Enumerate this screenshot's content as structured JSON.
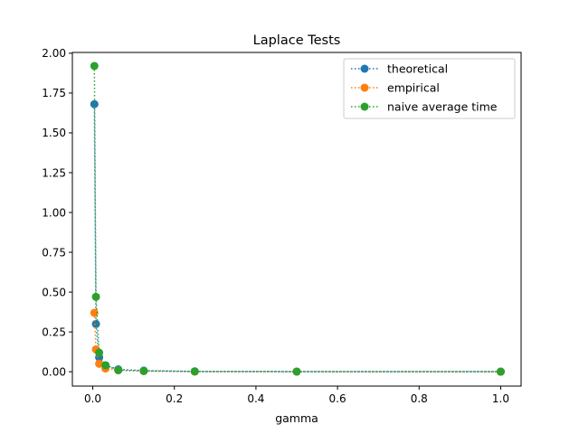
{
  "chart_data": {
    "type": "line",
    "title": "Laplace Tests",
    "xlabel": "gamma",
    "ylabel": "",
    "xlim": [
      -0.05,
      1.05
    ],
    "ylim": [
      -0.09,
      2.005
    ],
    "xticks": [
      "0.0",
      "0.2",
      "0.4",
      "0.6",
      "0.8",
      "1.0"
    ],
    "yticks": [
      "0.00",
      "0.25",
      "0.50",
      "0.75",
      "1.00",
      "1.25",
      "1.50",
      "1.75",
      "2.00"
    ],
    "grid": false,
    "legend_position": "top-right",
    "line_style": "dotted",
    "marker": "circle",
    "x": [
      0.00390625,
      0.0078125,
      0.015625,
      0.03125,
      0.0625,
      0.125,
      0.25,
      0.5,
      1.0
    ],
    "series": [
      {
        "name": "theoretical",
        "color": "#1f77b4",
        "values": [
          1.68,
          0.3,
          0.09,
          0.04,
          0.015,
          0.007,
          0.002,
          0.001,
          0.0005
        ]
      },
      {
        "name": "empirical",
        "color": "#ff7f0e",
        "values": [
          0.37,
          0.14,
          0.05,
          0.02,
          0.01,
          0.004,
          0.001,
          0.0005,
          0.0003
        ]
      },
      {
        "name": "naive average time",
        "color": "#2ca02c",
        "values": [
          1.92,
          0.47,
          0.12,
          0.04,
          0.01,
          0.005,
          0.002,
          0.001,
          0.0008
        ]
      }
    ]
  }
}
